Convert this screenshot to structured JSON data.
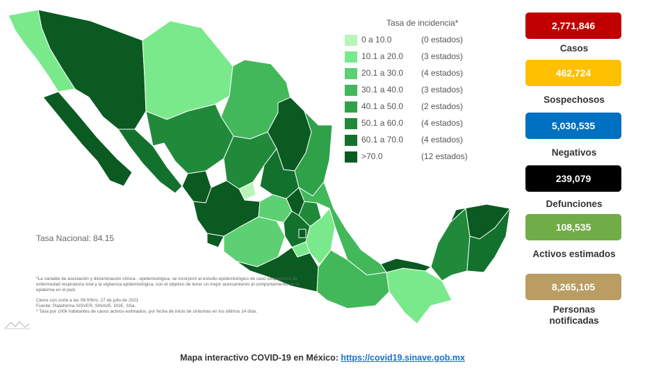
{
  "legend": {
    "title": "Tasa de incidencia*",
    "items": [
      {
        "range": "0    a  10.0",
        "count": "(0 estados)",
        "color": "#b9f5b9"
      },
      {
        "range": "10.1  a  20.0",
        "count": "(3 estados)",
        "color": "#7ae98c"
      },
      {
        "range": "20.1  a  30.0",
        "count": "(4 estados)",
        "color": "#5cd072"
      },
      {
        "range": "30.1  a  40.0",
        "count": "(3 estados)",
        "color": "#43b85a"
      },
      {
        "range": "40.1  a  50.0",
        "count": "(2 estados)",
        "color": "#2fa149"
      },
      {
        "range": "50.1  a  60.0",
        "count": "(4 estados)",
        "color": "#208a3a"
      },
      {
        "range": "60.1  a  70.0",
        "count": "(4 estados)",
        "color": "#12722d"
      },
      {
        "range": ">70.0",
        "count": "(12 estados)",
        "color": "#0a5a22"
      }
    ]
  },
  "tasa_nacional": "Tasa Nacional: 84.15",
  "notes": {
    "para1": "*La variable de asociación y dictaminación clínica - epidemiológica, se incorporó al estudio epidemiológico de caso sospechoso de enfermedad respiratoria viral y la vigilancia epidemiológica, con el objetivo de tener un mejor acercamiento al comportamiento de la epidemia en el país.",
    "corte": "Cierre con corte a las 09:00hrs, 27 de julio de 2021",
    "fuente": "Fuente: Plataforma SISVER, SINAVE, DGE, SSa.",
    "tasa": "* Tasa por 100k habitantes de casos activos estimados, por fecha de inicio de síntomas en los últimos 14 días."
  },
  "stats": [
    {
      "value": "2,771,846",
      "label": "Casos",
      "color": "#c00000"
    },
    {
      "value": "462,724",
      "label": "Sospechosos",
      "color": "#ffc000"
    },
    {
      "value": "5,030,535",
      "label": "Negativos",
      "color": "#0070c0"
    },
    {
      "value": "239,079",
      "label": "Defunciones",
      "color": "#000000"
    },
    {
      "value": "108,535",
      "label": "Activos estimados",
      "color": "#70ad47"
    },
    {
      "value": "8,265,105",
      "label": "Personas notificadas",
      "color": "#b99d62"
    }
  ],
  "footer": {
    "text": "Mapa interactivo COVID-19 en México: ",
    "link": "https://covid19.sinave.gob.mx"
  },
  "map_colors": {
    "darkest": "#0a5a22",
    "dark": "#12722d",
    "mid_dark": "#208a3a",
    "mid": "#2fa149",
    "mid_light": "#43b85a",
    "light": "#5cd072",
    "lighter": "#7ae98c",
    "lightest": "#b9f5b9"
  }
}
